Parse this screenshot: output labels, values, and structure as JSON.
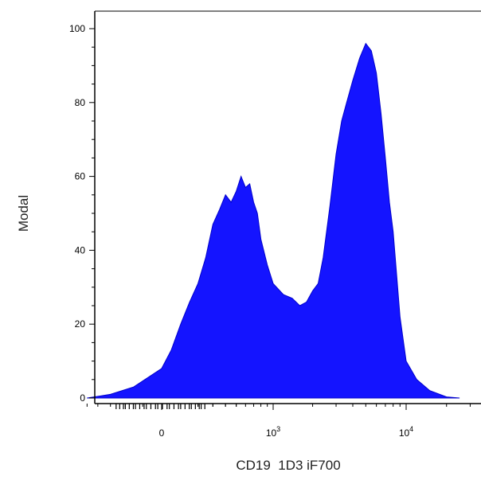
{
  "chart_data": {
    "type": "area",
    "title": "",
    "xlabel": "CD19  1D3 iF700",
    "ylabel": "Modal",
    "x_scale": "biexponential (logicle)",
    "x_ticks": [
      {
        "value": 0,
        "label": "0",
        "sup": ""
      },
      {
        "value": 1000,
        "label": "10",
        "sup": "3"
      },
      {
        "value": 10000,
        "label": "10",
        "sup": "4"
      }
    ],
    "y_ticks": [
      0,
      20,
      40,
      60,
      80,
      100
    ],
    "ylim": [
      0,
      105
    ],
    "grid": false,
    "fill_color": "#1414ff",
    "series": [
      {
        "x": [
          -500,
          -300,
          -150,
          0,
          50,
          100,
          150,
          200,
          250,
          300,
          350,
          400,
          450,
          500,
          550,
          600,
          650,
          700,
          750,
          800,
          900,
          1000,
          1200,
          1400,
          1600,
          1800,
          2000,
          2200,
          2400,
          2700,
          3000,
          3300,
          3600,
          4000,
          4500,
          5000,
          5500,
          6000,
          6500,
          7000,
          7500,
          8000,
          9000,
          10000,
          12000,
          15000,
          20000,
          25000
        ],
        "y": [
          0,
          1,
          3,
          8,
          13,
          20,
          26,
          31,
          38,
          47,
          51,
          55,
          53,
          56,
          60,
          57,
          58,
          53,
          50,
          43,
          36,
          31,
          28,
          27,
          25,
          26,
          29,
          31,
          38,
          52,
          66,
          75,
          80,
          86,
          92,
          96,
          94,
          88,
          77,
          65,
          53,
          45,
          22,
          10,
          5,
          2,
          0.3,
          0
        ]
      }
    ]
  }
}
